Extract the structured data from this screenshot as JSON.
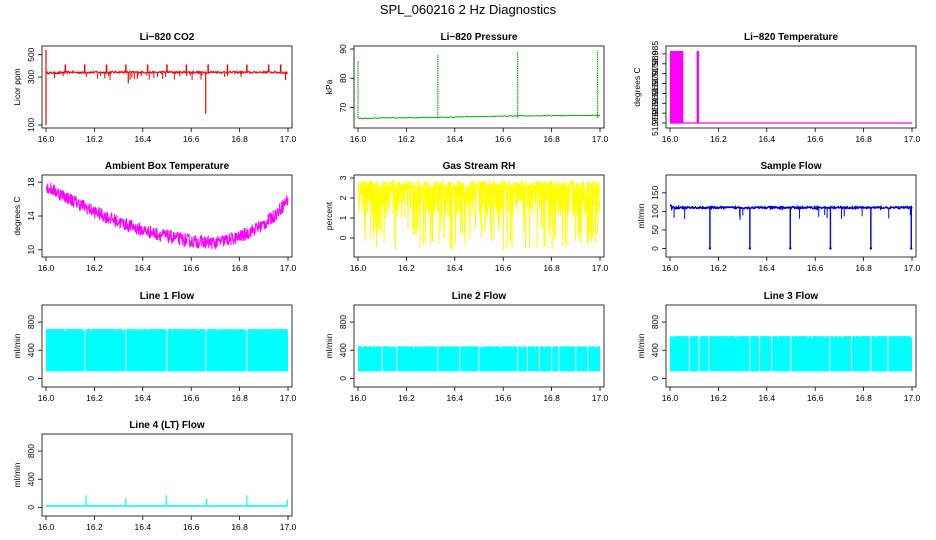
{
  "page": {
    "title": "SPL_060216  2 Hz Diagnostics"
  },
  "chart_data": [
    {
      "id": "co2",
      "type": "line",
      "title": "Li−820 CO2",
      "ylabel": "Licor ppm",
      "color": "#ff0000",
      "xlim": [
        16.0,
        17.0
      ],
      "ylim": [
        100,
        570
      ],
      "log_y": true,
      "xticks": [
        16.0,
        16.2,
        16.4,
        16.6,
        16.8,
        17.0
      ],
      "xtick_labels": [
        "16.0",
        "16.2",
        "16.4",
        "16.6",
        "16.8",
        "17.0"
      ],
      "yticks": [
        100,
        300,
        500
      ],
      "ytick_labels": [
        "100",
        "300",
        "500"
      ],
      "series": [
        {
          "name": "CO2",
          "x": [
            16.0,
            16.05,
            16.1,
            16.15,
            16.2,
            16.25,
            16.3,
            16.35,
            16.4,
            16.45,
            16.5,
            16.55,
            16.6,
            16.65,
            16.7,
            16.75,
            16.8,
            16.85,
            16.9,
            16.95,
            17.0
          ],
          "y": [
            330,
            330,
            335,
            332,
            335,
            333,
            336,
            334,
            335,
            333,
            336,
            334,
            335,
            333,
            336,
            334,
            335,
            333,
            336,
            334,
            330
          ]
        }
      ],
      "spikes_up": [
        16.08,
        16.16,
        16.25,
        16.33,
        16.42,
        16.5,
        16.58,
        16.67,
        16.75,
        16.83,
        16.92,
        16.97
      ],
      "spike_up_value": 400,
      "spikes_down": [
        {
          "x": 16.0,
          "y": 100
        },
        {
          "x": 16.66,
          "y": 130
        },
        {
          "x": 16.34,
          "y": 260
        },
        {
          "x": 16.99,
          "y": 280
        }
      ],
      "spike_up_extra": [
        {
          "x": 16.0,
          "y": 560
        }
      ]
    },
    {
      "id": "pressure",
      "type": "line",
      "title": "Li−820 Pressure",
      "ylabel": "kPa",
      "color": "#00b400",
      "xlim": [
        16.0,
        17.0
      ],
      "ylim": [
        64,
        90
      ],
      "xticks": [
        16.0,
        16.2,
        16.4,
        16.6,
        16.8,
        17.0
      ],
      "xtick_labels": [
        "16.0",
        "16.2",
        "16.4",
        "16.6",
        "16.8",
        "17.0"
      ],
      "yticks": [
        70,
        80,
        90
      ],
      "ytick_labels": [
        "70",
        "80",
        "90"
      ],
      "series": [
        {
          "name": "Pressure",
          "x": [
            16.0,
            16.33,
            16.66,
            17.0
          ],
          "y": [
            66.3,
            66.6,
            67.1,
            67.3
          ]
        }
      ],
      "spikes_up": [
        {
          "x": 16.0,
          "y": 86
        },
        {
          "x": 16.33,
          "y": 88
        },
        {
          "x": 16.66,
          "y": 89
        },
        {
          "x": 16.99,
          "y": 89.5
        }
      ]
    },
    {
      "id": "temperature",
      "type": "line",
      "title": "Li−820 Temperature",
      "ylabel": "degrees C",
      "color": "#ff00ff",
      "xlim": [
        16.0,
        17.0
      ],
      "ylim": [
        51.949,
        51.9875
      ],
      "xticks": [
        16.0,
        16.2,
        16.4,
        16.6,
        16.8,
        17.0
      ],
      "xtick_labels": [
        "16.0",
        "16.2",
        "16.4",
        "16.6",
        "16.8",
        "17.0"
      ],
      "yticks": [
        51.95,
        51.955,
        51.96,
        51.965,
        51.97,
        51.975,
        51.98,
        51.985
      ],
      "ytick_labels": [
        "51.950",
        "51.955",
        "51.960",
        "51.965",
        "51.970",
        "51.975",
        "51.980",
        "51.985"
      ],
      "baseline": 51.95,
      "high": 51.9865,
      "high_blocks": [
        [
          16.0,
          16.055
        ],
        [
          16.11,
          16.12
        ]
      ]
    },
    {
      "id": "ambient",
      "type": "line",
      "title": "Ambient Box Temperature",
      "ylabel": "degrees C",
      "color": "#ff00ff",
      "xlim": [
        16.0,
        17.0
      ],
      "ylim": [
        9.5,
        18.5
      ],
      "xticks": [
        16.0,
        16.2,
        16.4,
        16.6,
        16.8,
        17.0
      ],
      "xtick_labels": [
        "16.0",
        "16.2",
        "16.4",
        "16.6",
        "16.8",
        "17.0"
      ],
      "yticks": [
        10,
        14,
        18
      ],
      "ytick_labels": [
        "10",
        "14",
        "18"
      ],
      "series": [
        {
          "name": "Ambient",
          "x": [
            16.0,
            16.1,
            16.2,
            16.3,
            16.4,
            16.5,
            16.6,
            16.7,
            16.8,
            16.9,
            16.95,
            17.0
          ],
          "y": [
            17.5,
            16.0,
            14.5,
            13.3,
            12.3,
            11.6,
            11.0,
            10.8,
            11.5,
            13.0,
            14.2,
            16.0
          ]
        }
      ],
      "band_half_width": 0.8
    },
    {
      "id": "rh",
      "type": "line",
      "title": "Gas Stream RH",
      "ylabel": "percent",
      "color": "#ffff00",
      "xlim": [
        16.0,
        17.0
      ],
      "ylim": [
        -0.8,
        3.0
      ],
      "xticks": [
        16.0,
        16.2,
        16.4,
        16.6,
        16.8,
        17.0
      ],
      "xtick_labels": [
        "16.0",
        "16.2",
        "16.4",
        "16.6",
        "16.8",
        "17.0"
      ],
      "yticks": [
        0,
        1,
        2,
        3
      ],
      "ytick_labels": [
        "0",
        "1",
        "2",
        "3"
      ],
      "band_low": 1.0,
      "band_high": 2.6,
      "min": -0.6,
      "max": 2.9
    },
    {
      "id": "sample",
      "type": "line",
      "title": "Sample Flow",
      "ylabel": "ml/min",
      "color": "#0000dd",
      "xlim": [
        16.0,
        17.0
      ],
      "ylim": [
        -15,
        190
      ],
      "xticks": [
        16.0,
        16.2,
        16.4,
        16.6,
        16.8,
        17.0
      ],
      "xtick_labels": [
        "16.0",
        "16.2",
        "16.4",
        "16.6",
        "16.8",
        "17.0"
      ],
      "yticks": [
        0,
        50,
        100,
        150
      ],
      "ytick_labels": [
        "0",
        "50",
        "100",
        "150"
      ],
      "level": 110,
      "level_start": 116,
      "dips": [
        16.165,
        16.33,
        16.497,
        16.663,
        16.83,
        16.997
      ],
      "dip_value": 0
    },
    {
      "id": "line1",
      "type": "line",
      "title": "Line 1 Flow",
      "ylabel": "ml/min",
      "color": "#00ffff",
      "xlim": [
        16.0,
        17.0
      ],
      "ylim": [
        -80,
        1000
      ],
      "xticks": [
        16.0,
        16.2,
        16.4,
        16.6,
        16.8,
        17.0
      ],
      "xtick_labels": [
        "16.0",
        "16.2",
        "16.4",
        "16.6",
        "16.8",
        "17.0"
      ],
      "yticks": [
        0,
        400,
        800
      ],
      "ytick_labels": [
        "0",
        "400",
        "800"
      ],
      "band_low": 100,
      "band_high": 700,
      "gaps": [
        16.16,
        16.33,
        16.5,
        16.66,
        16.83
      ]
    },
    {
      "id": "line2",
      "type": "line",
      "title": "Line 2 Flow",
      "ylabel": "ml/min",
      "color": "#00ffff",
      "xlim": [
        16.0,
        17.0
      ],
      "ylim": [
        -80,
        1000
      ],
      "xticks": [
        16.0,
        16.2,
        16.4,
        16.6,
        16.8,
        17.0
      ],
      "xtick_labels": [
        "16.0",
        "16.2",
        "16.4",
        "16.6",
        "16.8",
        "17.0"
      ],
      "yticks": [
        0,
        400,
        800
      ],
      "ytick_labels": [
        "0",
        "400",
        "800"
      ],
      "band_low": 100,
      "band_high": 455,
      "gaps": [
        16.1,
        16.16,
        16.33,
        16.42,
        16.5,
        16.66,
        16.7,
        16.75,
        16.8,
        16.83,
        16.9,
        16.95
      ]
    },
    {
      "id": "line3",
      "type": "line",
      "title": "Line 3 Flow",
      "ylabel": "ml/min",
      "color": "#00ffff",
      "xlim": [
        16.0,
        17.0
      ],
      "ylim": [
        -80,
        1000
      ],
      "xticks": [
        16.0,
        16.2,
        16.4,
        16.6,
        16.8,
        17.0
      ],
      "xtick_labels": [
        "16.0",
        "16.2",
        "16.4",
        "16.6",
        "16.8",
        "17.0"
      ],
      "yticks": [
        0,
        400,
        800
      ],
      "ytick_labels": [
        "0",
        "400",
        "800"
      ],
      "band_low": 100,
      "band_high": 600,
      "gaps": [
        16.08,
        16.12,
        16.16,
        16.33,
        16.37,
        16.42,
        16.5,
        16.66,
        16.75,
        16.83,
        16.9
      ]
    },
    {
      "id": "line4",
      "type": "line",
      "title": "Line 4 (LT) Flow",
      "ylabel": "ml/min",
      "color": "#00ffff",
      "xlim": [
        16.0,
        17.0
      ],
      "ylim": [
        -80,
        1000
      ],
      "xticks": [
        16.0,
        16.2,
        16.4,
        16.6,
        16.8,
        17.0
      ],
      "xtick_labels": [
        "16.0",
        "16.2",
        "16.4",
        "16.6",
        "16.8",
        "17.0"
      ],
      "yticks": [
        0,
        400,
        800
      ],
      "ytick_labels": [
        "0",
        "400",
        "800"
      ],
      "level": 20,
      "spikes": [
        {
          "x": 16.165,
          "y": 170
        },
        {
          "x": 16.33,
          "y": 130
        },
        {
          "x": 16.497,
          "y": 175
        },
        {
          "x": 16.663,
          "y": 130
        },
        {
          "x": 16.83,
          "y": 170
        },
        {
          "x": 16.997,
          "y": 110
        }
      ]
    }
  ]
}
